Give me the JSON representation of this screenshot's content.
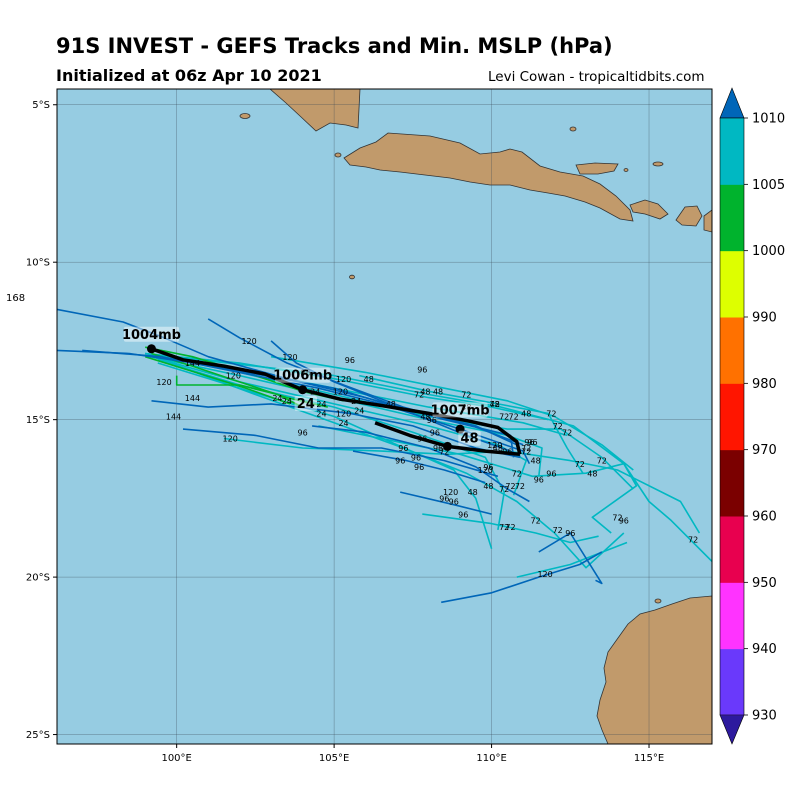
{
  "title": "91S INVEST - GEFS Tracks and Min. MSLP (hPa)",
  "subtitle": "Initialized at 06z Apr 10 2021",
  "credit": "Levi Cowan - tropicaltidbits.com",
  "stray_label": "168",
  "colors": {
    "ocean": "#96cce2",
    "land": "#c19a6b",
    "mean_track": "#000000"
  },
  "lat_labels": [
    {
      "lat": -5,
      "text": "5°S"
    },
    {
      "lat": -10,
      "text": "10°S"
    },
    {
      "lat": -15,
      "text": "15°S"
    },
    {
      "lat": -20,
      "text": "20°S"
    },
    {
      "lat": -25,
      "text": "25°S"
    }
  ],
  "lon_labels": [
    {
      "lon": 100,
      "text": "100°E"
    },
    {
      "lon": 105,
      "text": "105°E"
    },
    {
      "lon": 110,
      "text": "110°E"
    },
    {
      "lon": 115,
      "text": "115°E"
    }
  ],
  "colorbar": {
    "ticks": [
      "930",
      "940",
      "950",
      "960",
      "970",
      "980",
      "990",
      "1000",
      "1005",
      "1010"
    ],
    "colors": [
      "#2d1a9e",
      "#6a39fb",
      "#ff33ff",
      "#e8004f",
      "#7b0000",
      "#ff1500",
      "#ff7100",
      "#ddff00",
      "#00b32d",
      "#00b8c2",
      "#0066b8"
    ]
  },
  "mean_track_labels": [
    {
      "text": "1004mb",
      "lon": 99.2,
      "lat": -12.4
    },
    {
      "text": "1006mb",
      "lon": 104.0,
      "lat": -13.7
    },
    {
      "text": "24",
      "lon": 104.1,
      "lat": -14.6
    },
    {
      "text": "1007mb",
      "lon": 109.0,
      "lat": -14.8
    },
    {
      "text": "48",
      "lon": 109.3,
      "lat": -15.7
    }
  ],
  "hour_labels": [
    {
      "t": "144",
      "lon": 100.5,
      "lat": -13.3
    },
    {
      "t": "120",
      "lon": 99.6,
      "lat": -13.9
    },
    {
      "t": "120",
      "lon": 102.3,
      "lat": -12.6
    },
    {
      "t": "120",
      "lon": 101.8,
      "lat": -13.7
    },
    {
      "t": "120",
      "lon": 103.6,
      "lat": -13.1
    },
    {
      "t": "144",
      "lon": 100.5,
      "lat": -14.4
    },
    {
      "t": "144",
      "lon": 99.9,
      "lat": -15.0
    },
    {
      "t": "120",
      "lon": 101.7,
      "lat": -15.7
    },
    {
      "t": "96",
      "lon": 105.5,
      "lat": -13.2
    },
    {
      "t": "96",
      "lon": 104.1,
      "lat": -13.6
    },
    {
      "t": "120",
      "lon": 105.3,
      "lat": -13.8
    },
    {
      "t": "120",
      "lon": 105.2,
      "lat": -14.2
    },
    {
      "t": "48",
      "lon": 106.1,
      "lat": -13.8
    },
    {
      "t": "96",
      "lon": 107.8,
      "lat": -13.5
    },
    {
      "t": "72",
      "lon": 107.7,
      "lat": -14.3
    },
    {
      "t": "48",
      "lon": 107.9,
      "lat": -14.2
    },
    {
      "t": "48",
      "lon": 108.3,
      "lat": -14.2
    },
    {
      "t": "72",
      "lon": 109.2,
      "lat": -14.3
    },
    {
      "t": "48",
      "lon": 106.8,
      "lat": -14.6
    },
    {
      "t": "48",
      "lon": 109.2,
      "lat": -14.7
    },
    {
      "t": "48",
      "lon": 110.1,
      "lat": -14.6
    },
    {
      "t": "72",
      "lon": 110.1,
      "lat": -14.6
    },
    {
      "t": "72",
      "lon": 111.9,
      "lat": -14.9
    },
    {
      "t": "48",
      "lon": 111.1,
      "lat": -14.9
    },
    {
      "t": "72",
      "lon": 110.4,
      "lat": -15.0
    },
    {
      "t": "72",
      "lon": 110.7,
      "lat": -15.0
    },
    {
      "t": "72",
      "lon": 112.1,
      "lat": -15.3
    },
    {
      "t": "72",
      "lon": 112.4,
      "lat": -15.5
    },
    {
      "t": "96",
      "lon": 111.3,
      "lat": -15.8
    },
    {
      "t": "72",
      "lon": 111.1,
      "lat": -16.1
    },
    {
      "t": "48",
      "lon": 111.4,
      "lat": -16.4
    },
    {
      "t": "96",
      "lon": 111.9,
      "lat": -16.8
    },
    {
      "t": "72",
      "lon": 112.8,
      "lat": -16.5
    },
    {
      "t": "48",
      "lon": 113.2,
      "lat": -16.8
    },
    {
      "t": "72",
      "lon": 113.5,
      "lat": -16.4
    },
    {
      "t": "96",
      "lon": 111.5,
      "lat": -17.0
    },
    {
      "t": "72",
      "lon": 110.8,
      "lat": -16.8
    },
    {
      "t": "72",
      "lon": 110.6,
      "lat": -17.2
    },
    {
      "t": "72",
      "lon": 110.9,
      "lat": -17.2
    },
    {
      "t": "72",
      "lon": 110.4,
      "lat": -17.3
    },
    {
      "t": "48",
      "lon": 109.9,
      "lat": -17.2
    },
    {
      "t": "120",
      "lon": 109.8,
      "lat": -16.7
    },
    {
      "t": "96",
      "lon": 109.9,
      "lat": -16.6
    },
    {
      "t": "120",
      "lon": 108.7,
      "lat": -17.4
    },
    {
      "t": "96",
      "lon": 108.8,
      "lat": -17.7
    },
    {
      "t": "48",
      "lon": 109.4,
      "lat": -17.4
    },
    {
      "t": "96",
      "lon": 108.5,
      "lat": -17.6
    },
    {
      "t": "96",
      "lon": 109.1,
      "lat": -18.1
    },
    {
      "t": "72",
      "lon": 110.4,
      "lat": -18.5
    },
    {
      "t": "72",
      "lon": 110.6,
      "lat": -18.5
    },
    {
      "t": "72",
      "lon": 111.4,
      "lat": -18.3
    },
    {
      "t": "72",
      "lon": 112.1,
      "lat": -18.6
    },
    {
      "t": "96",
      "lon": 112.5,
      "lat": -18.7
    },
    {
      "t": "72",
      "lon": 114.0,
      "lat": -18.2
    },
    {
      "t": "96",
      "lon": 114.2,
      "lat": -18.3
    },
    {
      "t": "72",
      "lon": 116.4,
      "lat": -18.9
    },
    {
      "t": "120",
      "lon": 111.7,
      "lat": -20.0
    },
    {
      "t": "24",
      "lon": 103.2,
      "lat": -14.4
    },
    {
      "t": "24",
      "lon": 103.5,
      "lat": -14.5
    },
    {
      "t": "24",
      "lon": 104.4,
      "lat": -14.2
    },
    {
      "t": "24",
      "lon": 104.6,
      "lat": -14.6
    },
    {
      "t": "24",
      "lon": 104.6,
      "lat": -14.9
    },
    {
      "t": "24",
      "lon": 105.7,
      "lat": -14.5
    },
    {
      "t": "24",
      "lon": 105.8,
      "lat": -14.8
    },
    {
      "t": "120",
      "lon": 105.3,
      "lat": -14.9
    },
    {
      "t": "24",
      "lon": 105.3,
      "lat": -15.2
    },
    {
      "t": "96",
      "lon": 104.0,
      "lat": -15.5
    },
    {
      "t": "96",
      "lon": 107.2,
      "lat": -16.0
    },
    {
      "t": "96",
      "lon": 107.6,
      "lat": -16.3
    },
    {
      "t": "96",
      "lon": 108.3,
      "lat": -16.0
    },
    {
      "t": "96",
      "lon": 107.7,
      "lat": -16.6
    },
    {
      "t": "96",
      "lon": 107.1,
      "lat": -16.4
    },
    {
      "t": "96",
      "lon": 108.1,
      "lat": -15.1
    },
    {
      "t": "48",
      "lon": 107.9,
      "lat": -15.0
    },
    {
      "t": "96",
      "lon": 107.8,
      "lat": -15.7
    },
    {
      "t": "96",
      "lon": 108.2,
      "lat": -15.5
    },
    {
      "t": "72",
      "lon": 108.5,
      "lat": -16.1
    },
    {
      "t": "48",
      "lon": 110.2,
      "lat": -16.0
    },
    {
      "t": "120",
      "lon": 110.1,
      "lat": -15.9
    },
    {
      "t": "96",
      "lon": 110.5,
      "lat": -16.1
    },
    {
      "t": "72",
      "lon": 111.1,
      "lat": -16.0
    },
    {
      "t": "96",
      "lon": 111.2,
      "lat": -15.8
    }
  ],
  "aria": {
    "colorbar": "Minimum MSLP color scale in hPa",
    "label_box": "track label"
  }
}
